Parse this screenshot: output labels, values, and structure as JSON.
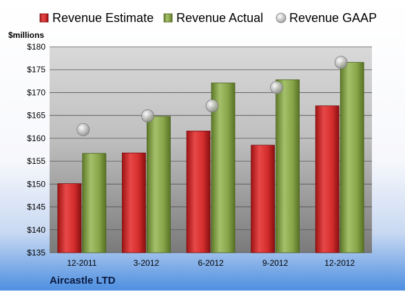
{
  "chart_data": {
    "type": "bar",
    "title": "",
    "ylabel": "$millions",
    "footer": "Aircastle LTD",
    "ylim": [
      135,
      180
    ],
    "ytick_step": 5,
    "ytick_prefix": "$",
    "grid": true,
    "legend_position": "top",
    "categories": [
      "12-2011",
      "3-2012",
      "6-2012",
      "9-2012",
      "12-2012"
    ],
    "series": [
      {
        "name": "Revenue Estimate",
        "kind": "bar",
        "color": "#d42d2d",
        "values": [
          150.1,
          156.8,
          161.6,
          158.5,
          167.1
        ]
      },
      {
        "name": "Revenue Actual",
        "kind": "bar",
        "color": "#8aa64a",
        "values": [
          156.7,
          164.8,
          172.1,
          172.8,
          176.6
        ]
      },
      {
        "name": "Revenue GAAP",
        "kind": "marker",
        "color": "#b8b8b8",
        "values": [
          161.9,
          164.9,
          167.1,
          171.1,
          176.6
        ]
      }
    ]
  }
}
